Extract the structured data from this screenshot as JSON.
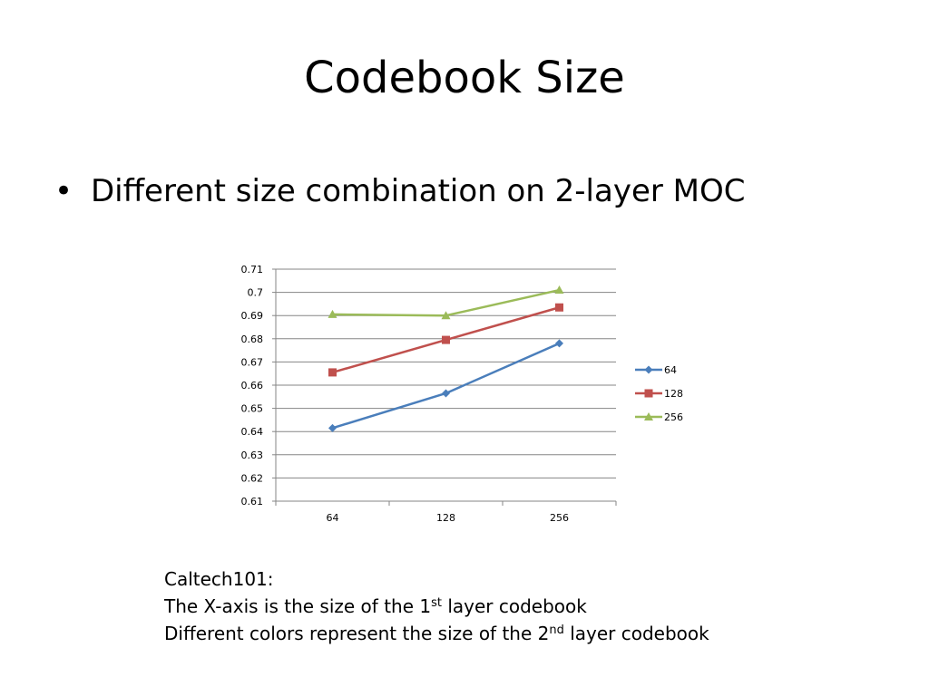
{
  "slide": {
    "title": "Codebook Size",
    "bullet": "Different size combination on 2-layer MOC"
  },
  "caption": {
    "line1": "Caltech101:",
    "line2_pre": "The X-axis is the size of the 1",
    "line2_sup": "st",
    "line2_post": " layer codebook",
    "line3_pre": "Different colors represent the size of the 2",
    "line3_sup": "nd",
    "line3_post": " layer codebook"
  },
  "chart_data": {
    "type": "line",
    "title": "",
    "xlabel": "",
    "ylabel": "",
    "categories": [
      "64",
      "128",
      "256"
    ],
    "ylim": [
      0.61,
      0.71
    ],
    "yticks": [
      "0.61",
      "0.62",
      "0.63",
      "0.64",
      "0.65",
      "0.66",
      "0.67",
      "0.68",
      "0.69",
      "0.7",
      "0.71"
    ],
    "grid": "horizontal",
    "legend_position": "right",
    "series": [
      {
        "name": "64",
        "values": [
          0.6415,
          0.6565,
          0.678
        ],
        "color": "#4a7ebb",
        "marker": "diamond"
      },
      {
        "name": "128",
        "values": [
          0.6655,
          0.6795,
          0.6935
        ],
        "color": "#c0504d",
        "marker": "square"
      },
      {
        "name": "256",
        "values": [
          0.6905,
          0.69,
          0.701
        ],
        "color": "#9bbb59",
        "marker": "triangle"
      }
    ]
  }
}
